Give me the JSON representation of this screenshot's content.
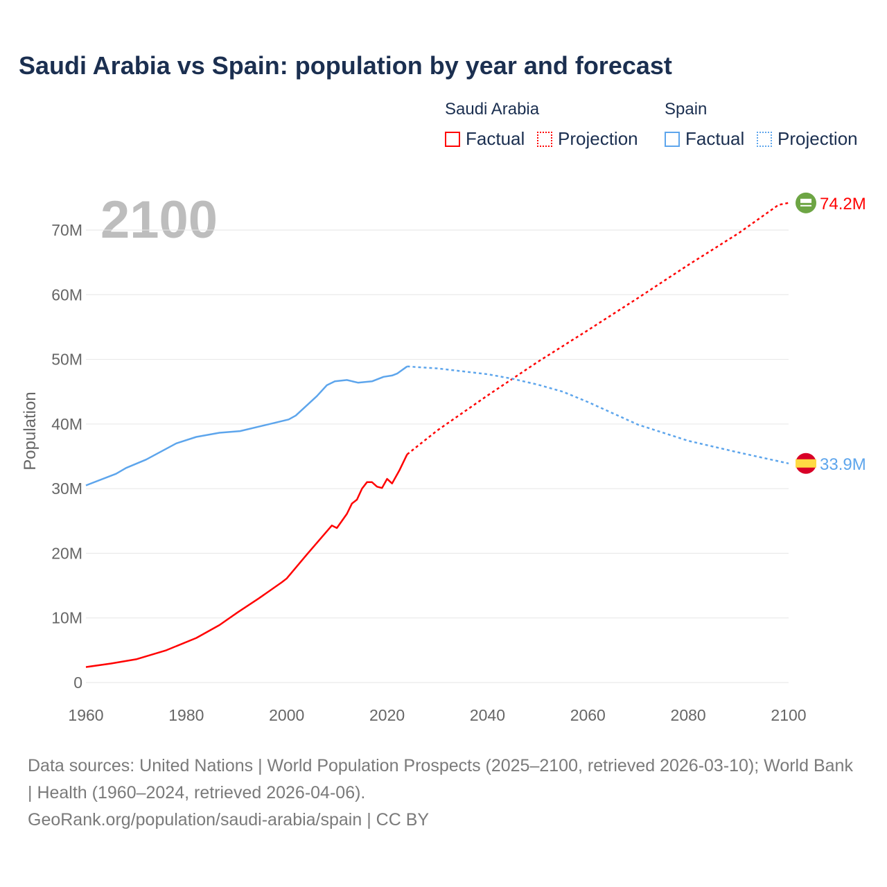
{
  "title": "Saudi Arabia vs Spain: population by year and forecast",
  "legend": {
    "groups": [
      {
        "name": "Saudi Arabia",
        "factual": "Factual",
        "projection": "Projection",
        "color": "#ff0000"
      },
      {
        "name": "Spain",
        "factual": "Factual",
        "projection": "Projection",
        "color": "#5da5ec"
      }
    ]
  },
  "year_display": "2100",
  "footer": {
    "sources": "Data sources: United Nations | World Population Prospects (2025–2100, retrieved 2026-03-10); World Bank | Health (1960–2024, retrieved 2026-04-06).",
    "credit": "GeoRank.org/population/saudi-arabia/spain | CC BY"
  },
  "chart_data": {
    "type": "line",
    "title": "Saudi Arabia vs Spain: population by year and forecast",
    "xlabel": "",
    "ylabel": "Population",
    "xlim": [
      1960,
      2100
    ],
    "ylim": [
      0,
      70000000
    ],
    "x_ticks": [
      "1960",
      "1980",
      "2000",
      "2020",
      "2040",
      "2060",
      "2080",
      "2100"
    ],
    "y_ticks": [
      "0",
      "10M",
      "20M",
      "30M",
      "40M",
      "50M",
      "60M",
      "70M"
    ],
    "y_tick_values": [
      0,
      10,
      20,
      30,
      40,
      50,
      60,
      70
    ],
    "units": "millions",
    "grid": true,
    "legend_position": "top-right",
    "series": [
      {
        "name": "Saudi Arabia",
        "color": "#ff0000",
        "flag": "saudi-arabia-flag",
        "end_label": "74.2M",
        "factual": [
          [
            1960,
            2.4
          ],
          [
            1965,
            2.95
          ],
          [
            1970,
            3.6
          ],
          [
            1976,
            5.0
          ],
          [
            1982,
            6.9
          ],
          [
            1986.6,
            8.9
          ],
          [
            1990.3,
            10.9
          ],
          [
            1994.4,
            13.0
          ],
          [
            1999,
            15.5
          ],
          [
            2000,
            16.1
          ],
          [
            2004,
            19.8
          ],
          [
            2009,
            24.3
          ],
          [
            2010,
            23.9
          ],
          [
            2012,
            26.1
          ],
          [
            2013,
            27.7
          ],
          [
            2014,
            28.3
          ],
          [
            2015,
            30.0
          ],
          [
            2016,
            31.0
          ],
          [
            2017,
            31.0
          ],
          [
            2018,
            30.3
          ],
          [
            2019,
            30.1
          ],
          [
            2020,
            31.5
          ],
          [
            2021,
            30.8
          ],
          [
            2022.5,
            32.9
          ],
          [
            2024,
            35.3
          ]
        ],
        "projection": [
          [
            2024,
            35.3
          ],
          [
            2030,
            39.0
          ],
          [
            2040,
            44.4
          ],
          [
            2050,
            49.6
          ],
          [
            2060,
            54.5
          ],
          [
            2070,
            59.5
          ],
          [
            2080,
            64.6
          ],
          [
            2090,
            69.5
          ],
          [
            2098,
            73.9
          ],
          [
            2100,
            74.2
          ]
        ]
      },
      {
        "name": "Spain",
        "color": "#5da5ec",
        "flag": "spain-flag",
        "end_label": "33.9M",
        "factual": [
          [
            1960,
            30.5
          ],
          [
            1966,
            32.3
          ],
          [
            1968,
            33.2
          ],
          [
            1972,
            34.5
          ],
          [
            1978,
            37.0
          ],
          [
            1982,
            38.0
          ],
          [
            1986.6,
            38.65
          ],
          [
            1990.7,
            38.9
          ],
          [
            1995,
            39.7
          ],
          [
            2000.4,
            40.7
          ],
          [
            2001.8,
            41.3
          ],
          [
            2006,
            44.3
          ],
          [
            2008,
            46.0
          ],
          [
            2009.6,
            46.6
          ],
          [
            2012,
            46.8
          ],
          [
            2014.2,
            46.4
          ],
          [
            2017,
            46.6
          ],
          [
            2019.3,
            47.3
          ],
          [
            2021,
            47.5
          ],
          [
            2022,
            47.8
          ],
          [
            2024,
            48.9
          ]
        ],
        "projection": [
          [
            2024,
            48.9
          ],
          [
            2030,
            48.6
          ],
          [
            2040,
            47.7
          ],
          [
            2045,
            47.0
          ],
          [
            2050,
            46.1
          ],
          [
            2055,
            45.0
          ],
          [
            2060,
            43.4
          ],
          [
            2070,
            39.9
          ],
          [
            2080,
            37.4
          ],
          [
            2090,
            35.6
          ],
          [
            2100,
            33.9
          ]
        ]
      }
    ]
  }
}
